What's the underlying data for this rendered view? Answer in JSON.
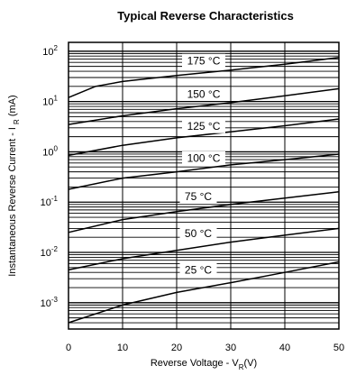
{
  "chart_data": {
    "type": "line",
    "title": "Typical Reverse Characteristics",
    "xlabel": "Reverse Voltage - V",
    "xlabel_sub": "R",
    "xlabel_unit": "(V)",
    "ylabel": "Instantaneous Reverse Current - I",
    "ylabel_sub": "R",
    "ylabel_unit": "(mA)",
    "xlim": [
      0,
      50
    ],
    "ylim": [
      0.0003,
      150
    ],
    "y_scale": "log",
    "x_ticks": [
      0,
      10,
      20,
      30,
      40,
      50
    ],
    "x_tick_labels": [
      "0",
      "10",
      "20",
      "30",
      "40",
      "50"
    ],
    "y_ticks": [
      0.001,
      0.01,
      0.1,
      1,
      10,
      100
    ],
    "y_tick_labels": [
      {
        "base": "10",
        "exp": "-3"
      },
      {
        "base": "10",
        "exp": "-2"
      },
      {
        "base": "10",
        "exp": "-1"
      },
      {
        "base": "10",
        "exp": "0"
      },
      {
        "base": "10",
        "exp": "1"
      },
      {
        "base": "10",
        "exp": "2"
      }
    ],
    "grid": true,
    "series": [
      {
        "name": "175 °C",
        "x": [
          0,
          5,
          10,
          20,
          30,
          40,
          50
        ],
        "y": [
          12,
          20,
          25,
          33,
          42,
          55,
          75
        ]
      },
      {
        "name": "150 °C",
        "x": [
          0,
          10,
          20,
          30,
          40,
          50
        ],
        "y": [
          3.5,
          5.2,
          7.2,
          9.5,
          13,
          18
        ]
      },
      {
        "name": "125 °C",
        "x": [
          0,
          10,
          20,
          30,
          40,
          50
        ],
        "y": [
          0.85,
          1.35,
          1.9,
          2.5,
          3.3,
          4.5
        ]
      },
      {
        "name": "100 °C",
        "x": [
          0,
          10,
          20,
          30,
          40,
          50
        ],
        "y": [
          0.18,
          0.3,
          0.4,
          0.55,
          0.7,
          0.9
        ]
      },
      {
        "name": "75 °C",
        "x": [
          0,
          10,
          20,
          30,
          40,
          50
        ],
        "y": [
          0.025,
          0.045,
          0.065,
          0.09,
          0.12,
          0.16
        ]
      },
      {
        "name": "50 °C",
        "x": [
          0,
          10,
          20,
          30,
          40,
          50
        ],
        "y": [
          0.0045,
          0.0075,
          0.011,
          0.016,
          0.022,
          0.03
        ]
      },
      {
        "name": "25 °C",
        "x": [
          0,
          10,
          20,
          30,
          40,
          50
        ],
        "y": [
          0.0004,
          0.0009,
          0.0016,
          0.0025,
          0.004,
          0.0065
        ]
      }
    ],
    "curve_labels": [
      {
        "text": "175 °C",
        "x": 25,
        "y": 65
      },
      {
        "text": "150 °C",
        "x": 25,
        "y": 14
      },
      {
        "text": "125 °C",
        "x": 25,
        "y": 3.2
      },
      {
        "text": "100 °C",
        "x": 25,
        "y": 0.75
      },
      {
        "text": "75 °C",
        "x": 24,
        "y": 0.13
      },
      {
        "text": "50 °C",
        "x": 24,
        "y": 0.024
      },
      {
        "text": "25 °C",
        "x": 24,
        "y": 0.0045
      }
    ]
  }
}
